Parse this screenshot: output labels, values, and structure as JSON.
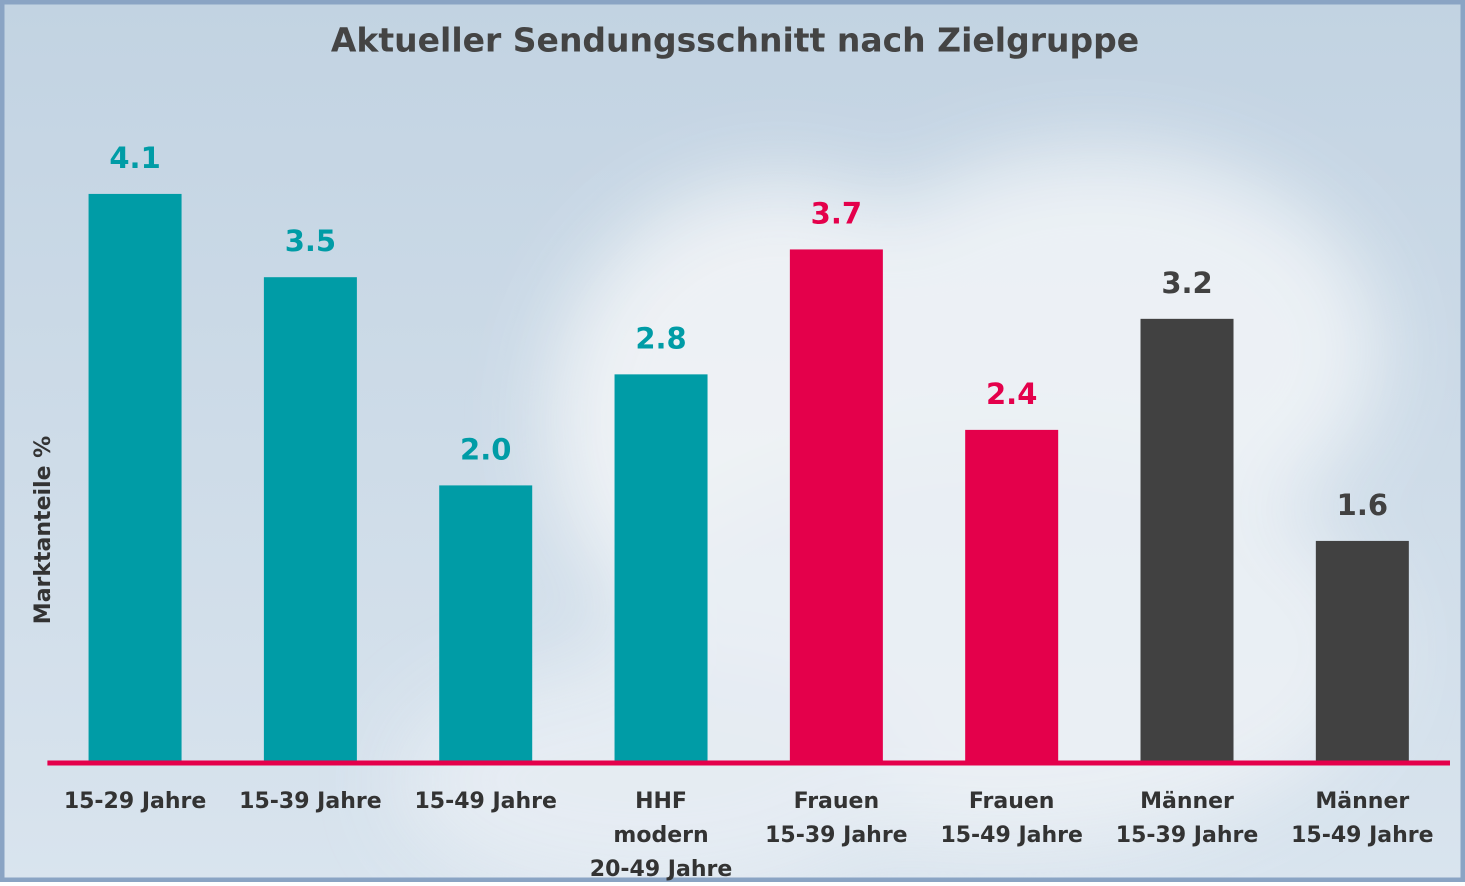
{
  "chart_data": {
    "type": "bar",
    "title": "Aktueller Sendungsschnitt nach Zielgruppe",
    "y_label": "Marktanteile %",
    "categories": [
      [
        "15-29 Jahre"
      ],
      [
        "15-39 Jahre"
      ],
      [
        "15-49 Jahre"
      ],
      [
        "HHF",
        "modern",
        "20-49 Jahre"
      ],
      [
        "Frauen",
        "15-39 Jahre"
      ],
      [
        "Frauen",
        "15-49 Jahre"
      ],
      [
        "Männer",
        "15-39 Jahre"
      ],
      [
        "Männer",
        "15-49 Jahre"
      ]
    ],
    "values": [
      4.1,
      3.5,
      2.0,
      2.8,
      3.7,
      2.4,
      3.2,
      1.6
    ],
    "value_labels": [
      "4.1",
      "3.5",
      "2.0",
      "2.8",
      "3.7",
      "2.4",
      "3.2",
      "1.6"
    ],
    "colors": [
      "#009ca6",
      "#009ca6",
      "#009ca6",
      "#009ca6",
      "#e4004b",
      "#e4004b",
      "#414141",
      "#414141"
    ],
    "ylim": [
      0,
      4.5
    ],
    "baseline_color": "#e4004b"
  }
}
